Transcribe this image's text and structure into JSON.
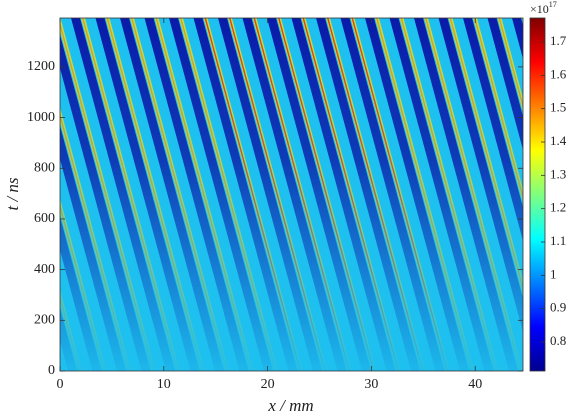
{
  "chart_data": {
    "type": "heatmap",
    "colormap": "jet",
    "x_label": "x / mm",
    "y_label": "t / ns",
    "xlim": [
      0,
      44.6
    ],
    "xticks": [
      0,
      10,
      20,
      30,
      40
    ],
    "ylim": [
      0,
      1393
    ],
    "yticks": [
      0,
      200,
      400,
      600,
      800,
      1000,
      1200
    ],
    "colorbar": {
      "lim": [
        0.713,
        1.772
      ],
      "ticks": [
        0.8,
        0.9,
        1,
        1.1,
        1.2,
        1.3,
        1.4,
        1.5,
        1.6,
        1.7
      ],
      "multiplier": "×10",
      "exponent": "17"
    }
  }
}
